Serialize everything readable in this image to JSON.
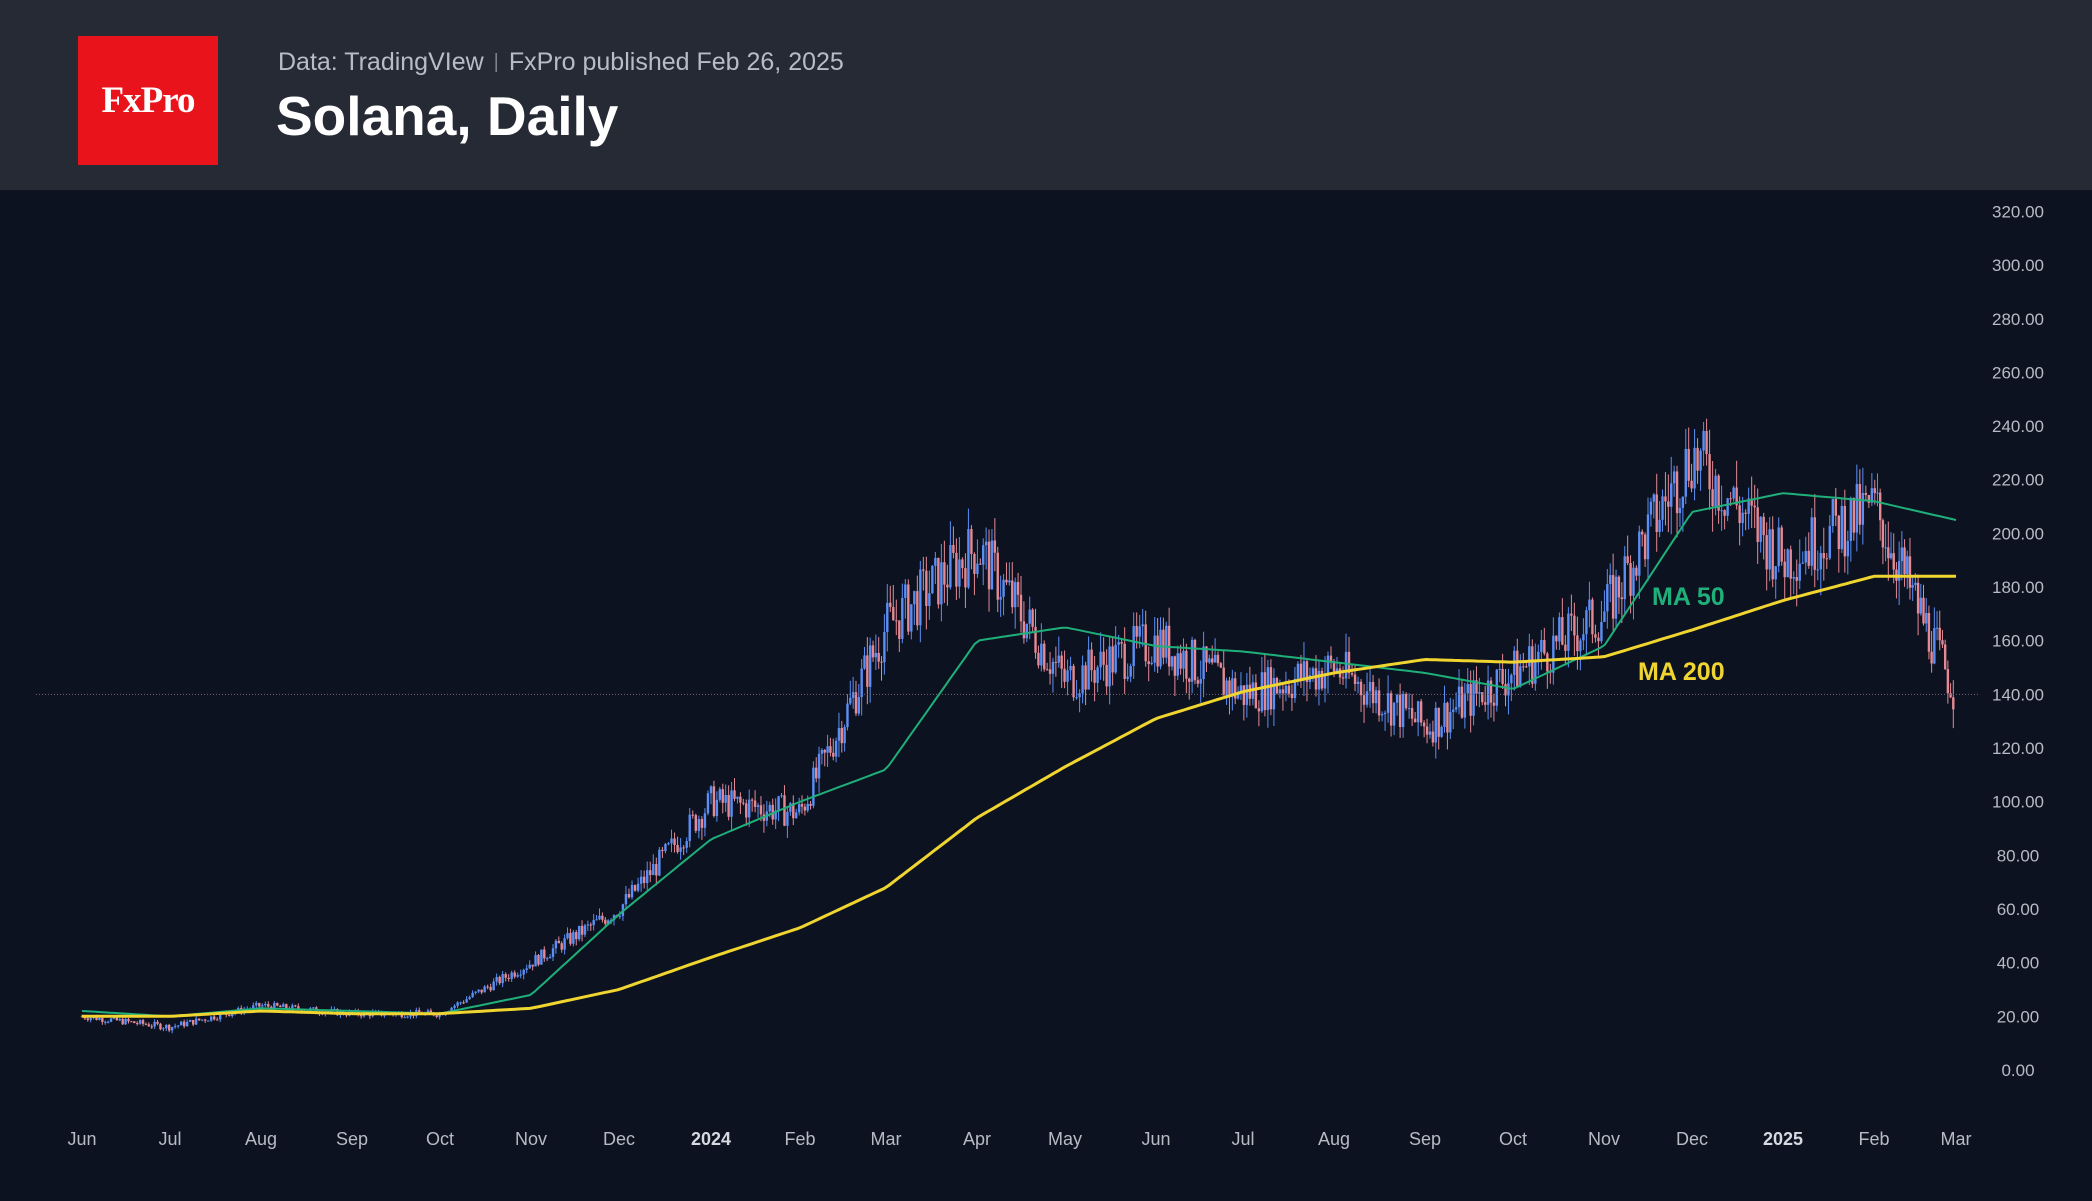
{
  "header": {
    "logo_text": "FxPro",
    "data_source": "Data: TradingVIew",
    "published": "FxPro published Feb 26, 2025",
    "title": "Solana, Daily"
  },
  "colors": {
    "header_bg": "#262a35",
    "chart_bg": "#0c1220",
    "logo_red": "#e8131b",
    "ma50": "#1fb07a",
    "ma200": "#f0d530",
    "candle_up": "#5b8ff5",
    "candle_down": "#e58a94",
    "price_line": "#7d6478"
  },
  "chart_data": {
    "type": "line",
    "title": "Solana, Daily",
    "x_axis_ticks": [
      "Jun",
      "Jul",
      "Aug",
      "Sep",
      "Oct",
      "Nov",
      "Dec",
      "2024",
      "Feb",
      "Mar",
      "Apr",
      "May",
      "Jun",
      "Jul",
      "Aug",
      "Sep",
      "Oct",
      "Nov",
      "Dec",
      "2025",
      "Feb",
      "Mar"
    ],
    "y_axis_ticks": [
      "0.00",
      "20.00",
      "40.00",
      "60.00",
      "80.00",
      "100.00",
      "120.00",
      "140.00",
      "160.00",
      "180.00",
      "200.00",
      "220.00",
      "240.00",
      "260.00",
      "280.00",
      "300.00",
      "320.00"
    ],
    "ylim": [
      0,
      320
    ],
    "current_price_line": 140,
    "x": [
      "2023-06",
      "2023-07",
      "2023-08",
      "2023-09",
      "2023-10",
      "2023-11",
      "2023-12",
      "2024-01",
      "2024-02",
      "2024-03",
      "2024-04",
      "2024-05",
      "2024-06",
      "2024-07",
      "2024-08",
      "2024-09",
      "2024-10",
      "2024-11",
      "2024-12",
      "2025-01",
      "2025-02",
      "2025-02-26"
    ],
    "series": [
      {
        "name": "MA 50",
        "color": "#1fb07a",
        "values": [
          22,
          20,
          23,
          22,
          21,
          28,
          58,
          86,
          100,
          112,
          160,
          165,
          158,
          156,
          152,
          148,
          142,
          158,
          208,
          215,
          212,
          205
        ]
      },
      {
        "name": "MA 200",
        "color": "#f0d530",
        "values": [
          20,
          20,
          22,
          21,
          21,
          23,
          30,
          42,
          53,
          68,
          94,
          113,
          131,
          141,
          148,
          153,
          152,
          154,
          164,
          175,
          184,
          184
        ]
      },
      {
        "name": "",
        "color": "#c98ab0",
        "values": [
          20,
          16,
          24,
          21,
          21,
          40,
          60,
          100,
          96,
          165,
          195,
          145,
          160,
          140,
          150,
          128,
          148,
          170,
          230,
          190,
          210,
          140
        ]
      }
    ],
    "annotations": [
      "MA 50",
      "MA 200"
    ]
  }
}
